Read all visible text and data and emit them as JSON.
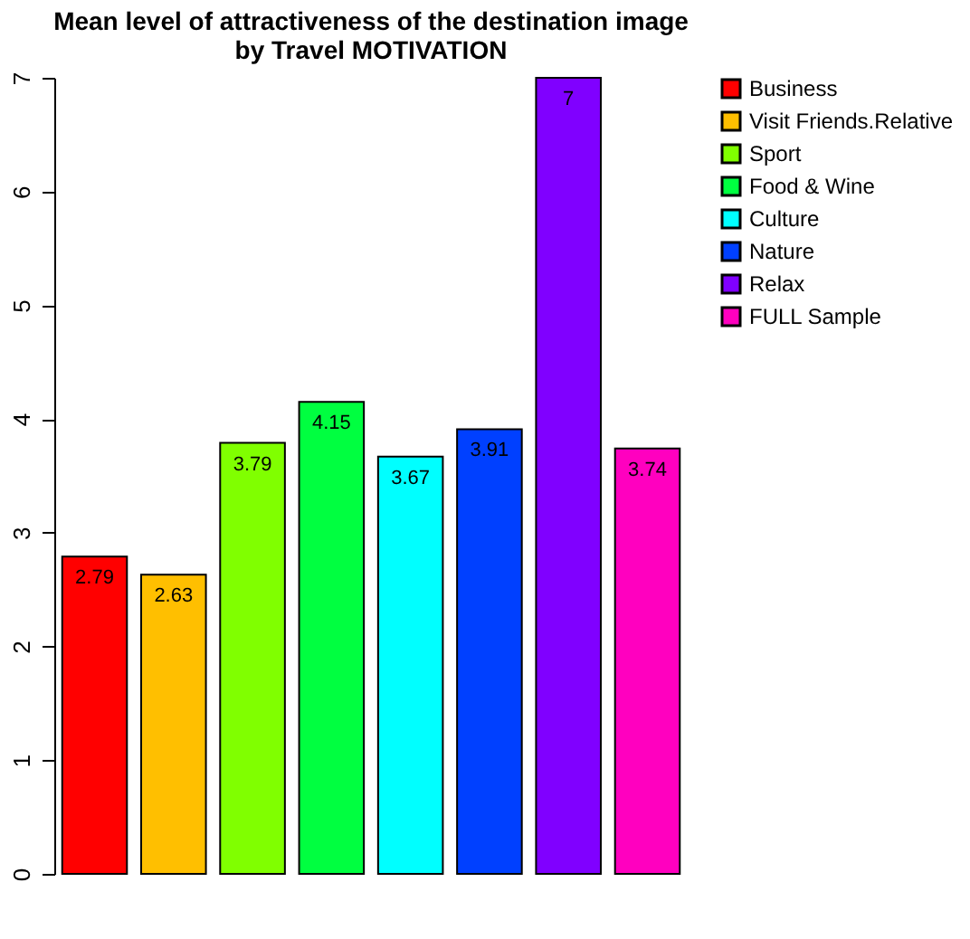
{
  "chart_data": {
    "type": "bar",
    "title": [
      "Mean level of attractiveness of the destination image",
      "by Travel MOTIVATION"
    ],
    "categories": [
      null,
      null,
      null,
      null,
      null,
      null,
      null,
      null
    ],
    "series": [
      {
        "name": "Business",
        "color": "#ff0000",
        "values": [
          2.79,
          null,
          null,
          null,
          null,
          null,
          null,
          null
        ]
      },
      {
        "name": "Visit Friends.Relative",
        "color": "#ffbf00",
        "values": [
          null,
          2.63,
          null,
          null,
          null,
          null,
          null,
          null
        ]
      },
      {
        "name": "Sport",
        "color": "#80ff00",
        "values": [
          null,
          null,
          3.79,
          null,
          null,
          null,
          null,
          null
        ]
      },
      {
        "name": "Food & Wine",
        "color": "#00ff40",
        "values": [
          null,
          null,
          null,
          4.15,
          null,
          null,
          null,
          null
        ]
      },
      {
        "name": "Culture",
        "color": "#00ffff",
        "values": [
          null,
          null,
          null,
          null,
          3.67,
          null,
          null,
          null
        ]
      },
      {
        "name": "Nature",
        "color": "#0040ff",
        "values": [
          null,
          null,
          null,
          null,
          null,
          3.91,
          null,
          null
        ]
      },
      {
        "name": "Relax",
        "color": "#8000ff",
        "values": [
          null,
          null,
          null,
          null,
          null,
          null,
          7,
          null
        ]
      },
      {
        "name": "FULL Sample",
        "color": "#ff00bf",
        "values": [
          null,
          null,
          null,
          null,
          null,
          null,
          null,
          3.74
        ]
      }
    ],
    "ylim": [
      0,
      7
    ],
    "yticks": [
      0,
      1,
      2,
      3,
      4,
      5,
      6,
      7
    ],
    "stacked": true,
    "data_labels": true,
    "legend": "right",
    "tick_labels": "y",
    "grid": false
  }
}
